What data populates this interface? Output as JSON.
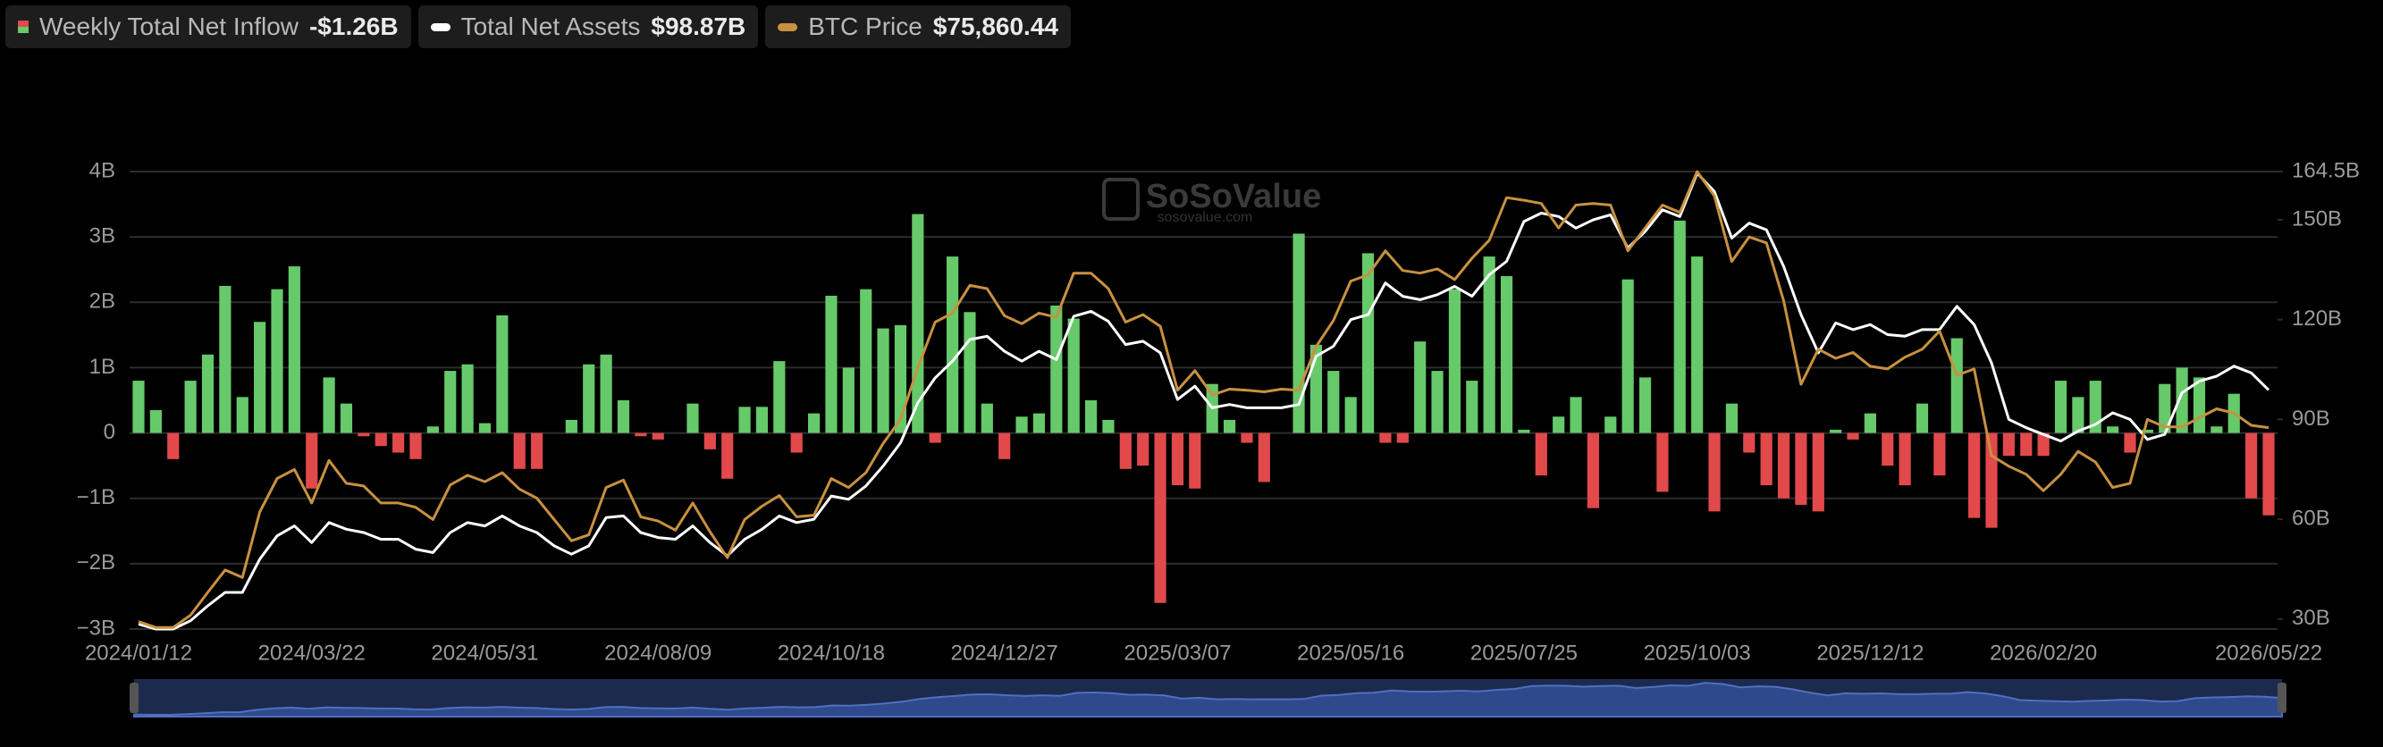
{
  "chart_data": {
    "type": "bar",
    "categories": [
      "2024/01/12",
      null,
      null,
      null,
      null,
      null,
      null,
      null,
      null,
      null,
      "2024/03/22",
      null,
      null,
      null,
      null,
      null,
      null,
      null,
      null,
      null,
      "2024/05/31",
      null,
      null,
      null,
      null,
      null,
      null,
      null,
      null,
      null,
      "2024/08/09",
      null,
      null,
      null,
      null,
      null,
      null,
      null,
      null,
      null,
      "2024/10/18",
      null,
      null,
      null,
      null,
      null,
      null,
      null,
      null,
      null,
      "2024/12/27",
      null,
      null,
      null,
      null,
      null,
      null,
      null,
      null,
      null,
      "2025/03/07",
      null,
      null,
      null,
      null,
      null,
      null,
      null,
      null,
      null,
      "2025/05/16",
      null,
      null,
      null,
      null,
      null,
      null,
      null,
      null,
      null,
      "2025/07/25",
      null,
      null,
      null,
      null,
      null,
      null,
      null,
      null,
      null,
      "2025/10/03",
      null,
      null,
      null,
      null,
      null,
      null,
      null,
      null,
      null,
      "2025/12/12",
      null,
      null,
      null,
      null,
      null,
      null,
      null,
      null,
      null,
      "2026/02/20",
      null,
      null,
      null,
      null,
      null,
      null,
      null,
      null,
      null,
      null,
      null,
      null,
      "2026/05/22"
    ],
    "ylim": [
      -3,
      4
    ],
    "yticks": [
      {
        "value": 4,
        "label": "4B"
      },
      {
        "value": 3,
        "label": "3B"
      },
      {
        "value": 2,
        "label": "2B"
      },
      {
        "value": 1,
        "label": "1B"
      },
      0,
      {
        "value": -1,
        "label": "−1B"
      },
      {
        "value": -2,
        "label": "−2B"
      },
      {
        "value": -3,
        "label": "−3B"
      }
    ],
    "y2lim": [
      27,
      164.5
    ],
    "y2ticks": [
      {
        "value": 164.5,
        "label": "164.5B"
      },
      {
        "value": 150,
        "label": "150B"
      },
      {
        "value": 120,
        "label": "120B"
      },
      {
        "value": 90,
        "label": "90B"
      },
      {
        "value": 60,
        "label": "60B"
      },
      {
        "value": 30,
        "label": "30B"
      }
    ],
    "grid": true,
    "watermark": {
      "title": "SoSoValue",
      "url": "sosovalue.com"
    },
    "series": [
      {
        "name": "Weekly Total Net Inflow",
        "type": "bar",
        "color": "#66c96a",
        "negative_color": "#e2494b",
        "legend_value": "-$1.26B",
        "values": [
          0.8,
          0.35,
          -0.4,
          0.8,
          1.2,
          2.25,
          0.55,
          1.7,
          2.2,
          2.55,
          -0.85,
          0.85,
          0.45,
          -0.05,
          -0.2,
          -0.3,
          -0.4,
          0.1,
          0.95,
          1.05,
          0.15,
          1.8,
          -0.55,
          -0.55,
          0,
          0.2,
          1.05,
          1.2,
          0.5,
          -0.05,
          -0.1,
          0,
          0.45,
          -0.25,
          -0.7,
          0.4,
          0.4,
          1.1,
          -0.3,
          0.3,
          2.1,
          1.0,
          2.2,
          1.6,
          1.65,
          3.35,
          -0.15,
          2.7,
          1.85,
          0.45,
          -0.4,
          0.25,
          0.3,
          1.95,
          1.75,
          0.5,
          0.2,
          -0.55,
          -0.5,
          -2.6,
          -0.8,
          -0.85,
          0.75,
          0.2,
          -0.15,
          -0.75,
          0,
          3.05,
          1.35,
          0.95,
          0.55,
          2.75,
          -0.15,
          -0.15,
          1.4,
          0.95,
          2.2,
          0.8,
          2.7,
          2.4,
          0.05,
          -0.65,
          0.25,
          0.55,
          -1.15,
          0.25,
          2.35,
          0.85,
          -0.9,
          3.25,
          2.7,
          -1.2,
          0.45,
          -0.3,
          -0.8,
          -1.0,
          -1.1,
          -1.2,
          0.05,
          -0.1,
          0.3,
          -0.5,
          -0.8,
          0.45,
          -0.65,
          1.45,
          -1.3,
          -1.45,
          -0.35,
          -0.35,
          -0.35,
          0.8,
          0.55,
          0.8,
          0.1,
          -0.3,
          0.05,
          0.75,
          1.0,
          0.85,
          0.1,
          0.6,
          -1.0,
          -1.26
        ]
      },
      {
        "name": "Total Net Assets",
        "type": "line",
        "axis": "y2",
        "color": "#ffffff",
        "legend_value": "$98.87B",
        "values": [
          28.5,
          27,
          27,
          29.5,
          34,
          38,
          38,
          48,
          55,
          58,
          53,
          59,
          57,
          56,
          54,
          54,
          51,
          50,
          56,
          59,
          58,
          61,
          58,
          56,
          52,
          49.5,
          52,
          60.5,
          61,
          56,
          54.5,
          54,
          58,
          53,
          49,
          54,
          57,
          61,
          59,
          60,
          67,
          66,
          70,
          76,
          83,
          95,
          102.5,
          107.5,
          114,
          115,
          110.5,
          107.5,
          110.5,
          108,
          121,
          122.5,
          119.5,
          112.5,
          113.5,
          110,
          96,
          100,
          93.5,
          94.5,
          93.5,
          93.5,
          93.5,
          94.5,
          109,
          112,
          120,
          121.5,
          131,
          127,
          126,
          127.5,
          130,
          127,
          133.5,
          137.5,
          149.5,
          152,
          151,
          147.5,
          150,
          151.5,
          141.5,
          146.5,
          153,
          151,
          164,
          158.5,
          144.5,
          149,
          147,
          136,
          121.5,
          110,
          119,
          117,
          118.5,
          115.5,
          115,
          117,
          117,
          124,
          118.5,
          107,
          90,
          87.5,
          85.5,
          83.5,
          86.5,
          88.5,
          92,
          90,
          84,
          85.5,
          98,
          101.5,
          103,
          106,
          104,
          98.87
        ]
      },
      {
        "name": "BTC Price",
        "type": "line",
        "axis": "y3",
        "ylim": [
          38000,
          124000
        ],
        "color": "#c8913f",
        "legend_value": "$75,860.44",
        "values": [
          39400,
          38300,
          38300,
          40600,
          44900,
          49100,
          47700,
          60000,
          66300,
          68000,
          61700,
          69700,
          65400,
          64900,
          61700,
          61700,
          60900,
          58600,
          65100,
          66900,
          65700,
          67400,
          64300,
          62600,
          58600,
          54600,
          55700,
          64600,
          66000,
          59100,
          58300,
          56600,
          61700,
          56300,
          51400,
          58600,
          61100,
          63100,
          59100,
          59400,
          66300,
          64600,
          67400,
          72900,
          77400,
          87100,
          95700,
          97400,
          102600,
          102000,
          96900,
          95400,
          97400,
          96600,
          104900,
          104900,
          102000,
          95700,
          97100,
          94900,
          82900,
          86600,
          82000,
          83100,
          82900,
          82600,
          83100,
          82900,
          91100,
          96000,
          103400,
          104600,
          109100,
          105400,
          104900,
          105700,
          103700,
          107700,
          111100,
          119100,
          118600,
          118000,
          113400,
          117700,
          118000,
          117700,
          109100,
          113400,
          117700,
          116300,
          124000,
          119400,
          107100,
          111700,
          110600,
          99700,
          84000,
          90600,
          88900,
          90000,
          87400,
          86900,
          89100,
          90600,
          94000,
          85700,
          86900,
          70600,
          68600,
          67100,
          64000,
          67100,
          71400,
          69400,
          64600,
          65400,
          77400,
          76000,
          76000,
          77700,
          79400,
          78600,
          76300,
          75860.44
        ]
      }
    ]
  }
}
